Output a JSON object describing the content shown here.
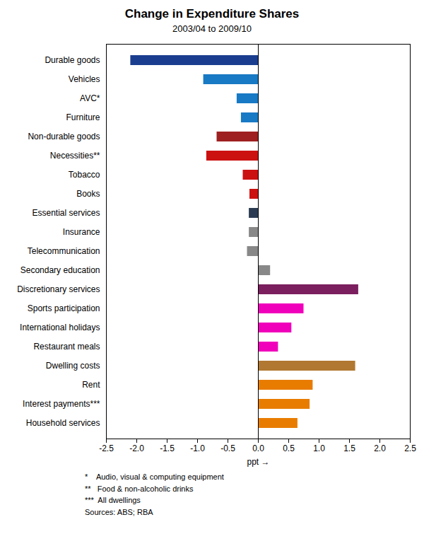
{
  "chart_data": {
    "type": "bar",
    "orientation": "horizontal",
    "title": "Change in Expenditure Shares",
    "subtitle": "2003/04 to 2009/10",
    "xlabel": "ppt",
    "xlim": [
      -2.5,
      2.5
    ],
    "xticks": [
      -2.5,
      {
        "value": -2,
        "label": "-2.0"
      },
      -1.5,
      {
        "value": -1,
        "label": "-1.0"
      },
      -0.5,
      {
        "value": 0,
        "label": "0.0"
      },
      0.5,
      {
        "value": 1,
        "label": "1.0"
      },
      1.5,
      {
        "value": 2,
        "label": "2.0"
      },
      2.5
    ],
    "categories": [
      "Durable goods",
      "Vehicles",
      "AVC*",
      "Furniture",
      "Non-durable goods",
      "Necessities**",
      "Tobacco",
      "Books",
      "Essential services",
      "Insurance",
      "Telecommunication",
      "Secondary education",
      "Discretionary services",
      "Sports participation",
      "International holidays",
      "Restaurant meals",
      "Dwelling costs",
      "Rent",
      "Interest payments***",
      "Household services"
    ],
    "values": [
      -2.1,
      -0.9,
      -0.35,
      -0.28,
      -0.68,
      -0.85,
      -0.25,
      -0.14,
      -0.15,
      -0.15,
      -0.18,
      0.2,
      1.65,
      0.75,
      0.55,
      0.33,
      1.6,
      0.9,
      0.85,
      0.65
    ],
    "colors": [
      "#1b3d8f",
      "#1879c4",
      "#1879c4",
      "#1879c4",
      "#9e2020",
      "#cc1111",
      "#cc1111",
      "#cc1111",
      "#2d3b52",
      "#888888",
      "#888888",
      "#888888",
      "#7b1f5e",
      "#f000bb",
      "#f000bb",
      "#f000bb",
      "#b07830",
      "#e87c00",
      "#e87c00",
      "#e87c00"
    ],
    "grid": false,
    "annotations": [
      "*    Audio, visual & computing equipment",
      "**   Food & non-alcoholic drinks",
      "***  All dwellings",
      "Sources: ABS; RBA"
    ]
  }
}
